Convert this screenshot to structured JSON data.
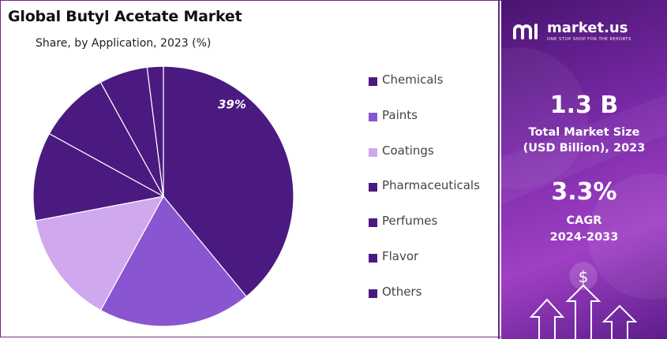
{
  "chart": {
    "title": "Global Butyl Acetate Market",
    "subtitle": "Share, by Application, 2023 (%)"
  },
  "chart_data": {
    "type": "pie",
    "title": "Global Butyl Acetate Market",
    "subtitle": "Share, by Application, 2023 (%)",
    "categories": [
      "Chemicals",
      "Paints",
      "Coatings",
      "Pharmaceuticals",
      "Perfumes",
      "Flavor",
      "Others"
    ],
    "values": [
      39,
      19,
      14,
      11,
      9,
      6,
      2
    ],
    "colors": [
      "#4a1a80",
      "#8a55d0",
      "#d0a8ee",
      "#4a1a80",
      "#4a1a80",
      "#4a1a80",
      "#4a1a80"
    ],
    "data_labels": [
      "39%",
      "",
      "",
      "",
      "",
      "",
      ""
    ],
    "legend_position": "right"
  },
  "legend": {
    "items": [
      {
        "label": "Chemicals",
        "color": "#4a1a80"
      },
      {
        "label": "Paints",
        "color": "#8a55d0"
      },
      {
        "label": "Coatings",
        "color": "#d0a8ee"
      },
      {
        "label": "Pharmaceuticals",
        "color": "#4a1a80"
      },
      {
        "label": "Perfumes",
        "color": "#4a1a80"
      },
      {
        "label": "Flavor",
        "color": "#4a1a80"
      },
      {
        "label": "Others",
        "color": "#4a1a80"
      }
    ]
  },
  "sidebar": {
    "brand": "market.us",
    "tagline": "ONE STOP SHOP FOR THE REPORTS",
    "market_size_value": "1.3 B",
    "market_size_label_1": "Total Market Size",
    "market_size_label_2": "(USD Billion), 2023",
    "cagr_value": "3.3%",
    "cagr_label_1": "CAGR",
    "cagr_label_2": "2024-2033",
    "currency_symbol": "$"
  }
}
